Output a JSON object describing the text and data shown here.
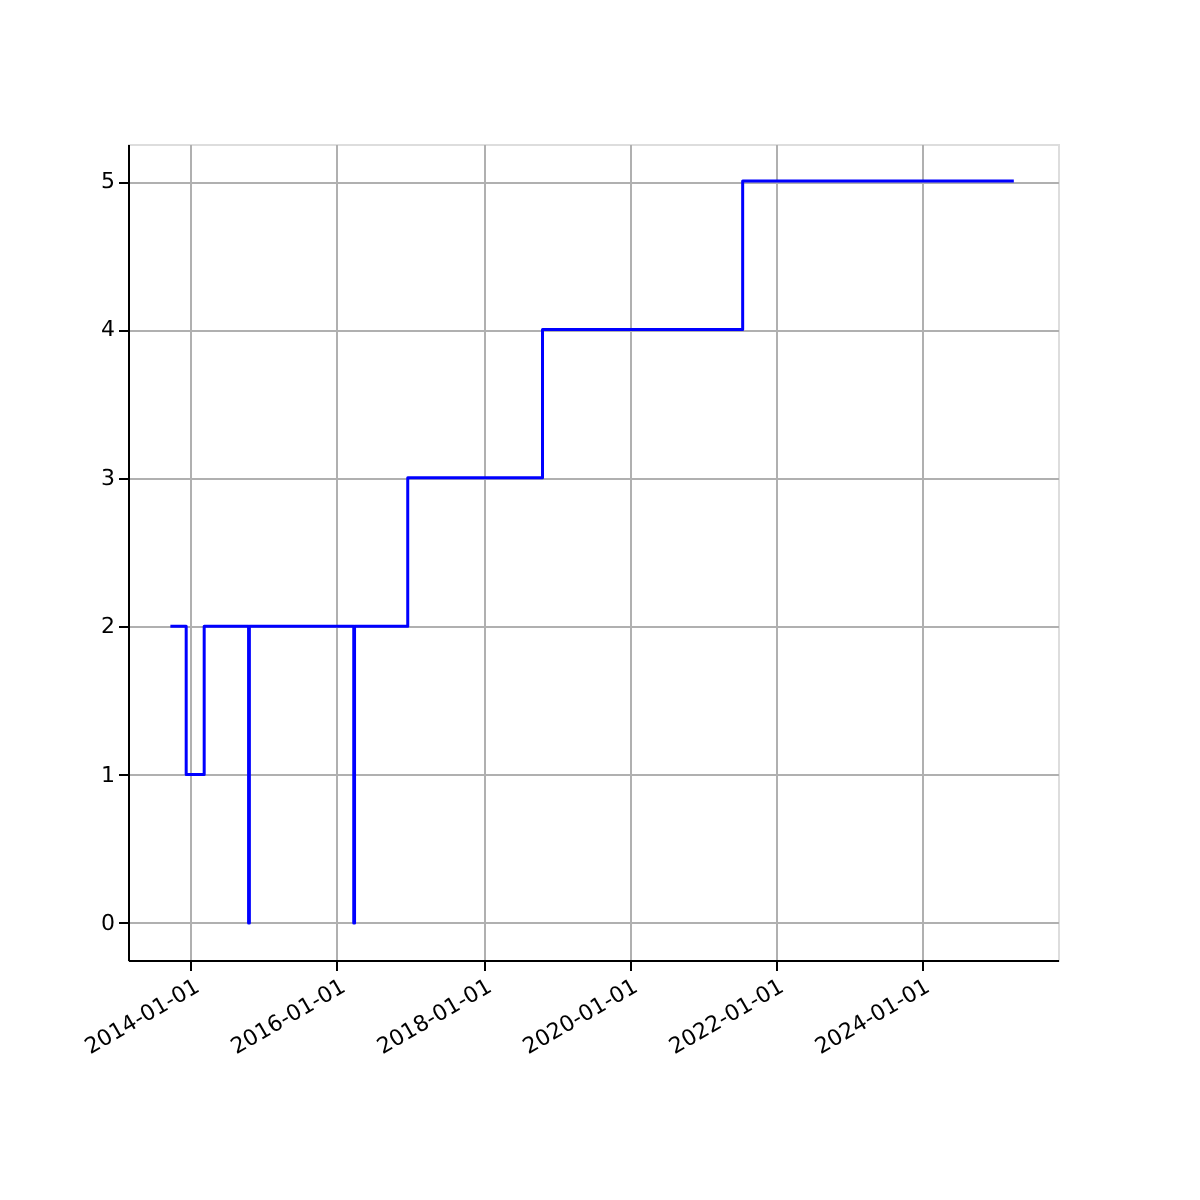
{
  "chart_data": {
    "type": "step",
    "x": [
      "2013-09-20",
      "2013-12-08",
      "2014-03-08",
      "2014-10-16",
      "2014-10-20",
      "2016-03-25",
      "2016-03-29",
      "2016-12-20",
      "2018-10-25",
      "2021-07-22",
      "2025-04-08"
    ],
    "series": [
      {
        "color": "#0000ff",
        "values": [
          2,
          1,
          2,
          0,
          2,
          0,
          2,
          3,
          4,
          5,
          5
        ]
      }
    ],
    "xlim": [
      "2013-02-20",
      "2025-11-15"
    ],
    "xticks": [
      "2014-01-01",
      "2016-01-01",
      "2018-01-01",
      "2020-01-01",
      "2022-01-01",
      "2024-01-01"
    ],
    "ylim": [
      -0.25,
      5.25
    ],
    "yticks": [
      0,
      1,
      2,
      3,
      4,
      5
    ],
    "grid": true,
    "line_style": "solid",
    "marker": "none"
  }
}
